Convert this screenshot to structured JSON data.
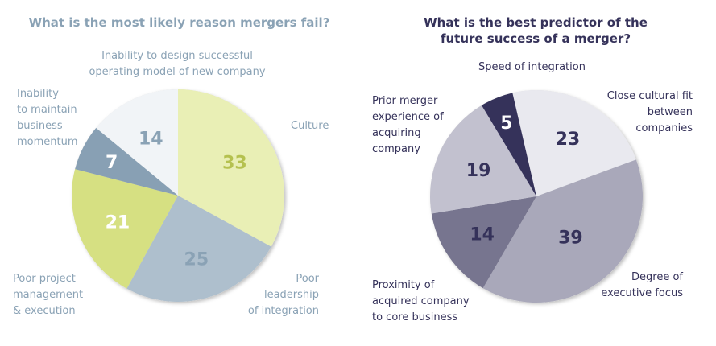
{
  "chart_data": [
    {
      "type": "pie",
      "title": "What is the most likely reason mergers fail?",
      "start_angle_deg": 0,
      "direction": "clockwise",
      "slices": [
        {
          "label": "Culture",
          "value": 33,
          "color": "#e9efb5",
          "value_color": "#b5c14f"
        },
        {
          "label": "Poor leadership of integration",
          "value": 25,
          "color": "#aebfcd",
          "value_color": "#8aa2b5"
        },
        {
          "label": "Poor project management & execution",
          "value": 21,
          "color": "#d6e082",
          "value_color": "#ffffff"
        },
        {
          "label": "Inability to maintain business momentum",
          "value": 7,
          "color": "#88a0b4",
          "value_color": "#ffffff"
        },
        {
          "label": "Inability to design successful operating model of new company",
          "value": 14,
          "color": "#f1f4f7",
          "value_color": "#8aa2b5"
        }
      ],
      "title_color": "#8aa2b5",
      "label_color": "#8aa2b5"
    },
    {
      "type": "pie",
      "title": "What is the best predictor of the future success of a merger?",
      "start_angle_deg": -13,
      "direction": "clockwise",
      "slices": [
        {
          "label": "Close cultural fit between companies",
          "value": 23,
          "color": "#e9e9ef",
          "value_color": "#35325a"
        },
        {
          "label": "Degree of executive focus",
          "value": 39,
          "color": "#a9a8ba",
          "value_color": "#35325a"
        },
        {
          "label": "Proximity of acquired company to core business",
          "value": 14,
          "color": "#77758f",
          "value_color": "#35325a"
        },
        {
          "label": "Prior merger experience of acquiring company",
          "value": 19,
          "color": "#c2c1cf",
          "value_color": "#35325a"
        },
        {
          "label": "Speed of integration",
          "value": 5,
          "color": "#35325a",
          "value_color": "#ffffff"
        }
      ],
      "title_color": "#35325a",
      "label_color": "#35325a"
    }
  ],
  "left": {
    "title": "What is the most likely reason mergers fail?",
    "labels": {
      "design": "Inability to design successful\noperating model of new company",
      "momentum": "Inability\nto maintain\nbusiness\nmomentum",
      "culture": "Culture",
      "project": "Poor project\nmanagement\n& execution",
      "leadership": "Poor\nleadership\nof integration"
    }
  },
  "right": {
    "title_line1": "What is the best predictor of the",
    "title_line2": "future success of a merger?",
    "labels": {
      "speed": "Speed of integration",
      "prior": "Prior merger\nexperience of\nacquiring\ncompany",
      "cultural": "Close cultural fit\nbetween\ncompanies",
      "proximity": "Proximity of\nacquired company\nto core business",
      "executive": "Degree of\nexecutive focus"
    }
  }
}
